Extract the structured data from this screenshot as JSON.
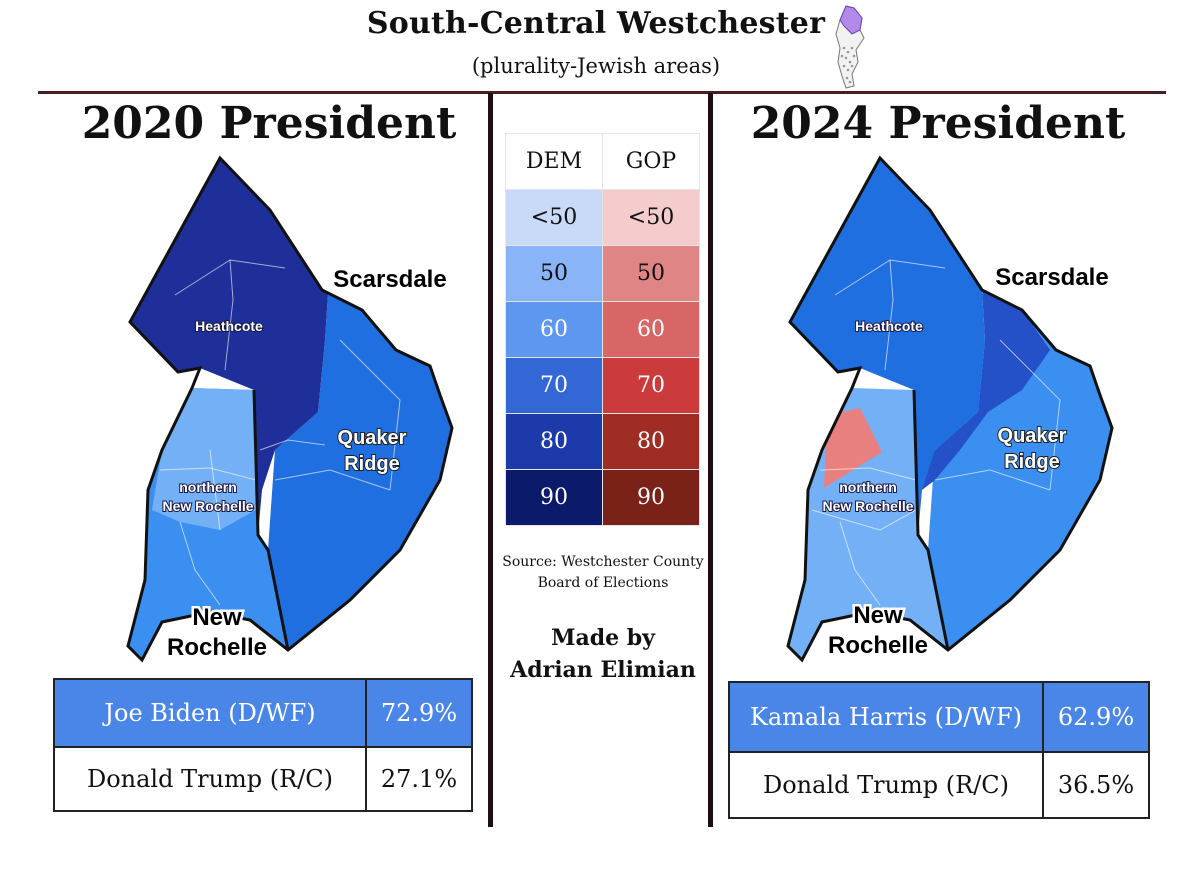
{
  "header": {
    "title": "South-Central Westchester",
    "subtitle": "(plurality-Jewish areas)"
  },
  "icons": {
    "county_locator": "westchester-county-locator-icon"
  },
  "left": {
    "panel_title": "2020 President",
    "labels": {
      "heathcote": "Heathcote",
      "scarsdale": "Scarsdale",
      "quaker_1": "Quaker",
      "quaker_2": "Ridge",
      "north_nr_1": "northern",
      "north_nr_2": "New Rochelle",
      "new_ro_1": "New",
      "new_ro_2": "Rochelle"
    },
    "results": [
      {
        "candidate": "Joe Biden (D/WF)",
        "pct": "72.9%"
      },
      {
        "candidate": "Donald Trump (R/C)",
        "pct": "27.1%"
      }
    ]
  },
  "right": {
    "panel_title": "2024 President",
    "labels": {
      "heathcote": "Heathcote",
      "scarsdale": "Scarsdale",
      "quaker_1": "Quaker",
      "quaker_2": "Ridge",
      "north_nr_1": "northern",
      "north_nr_2": "New Rochelle",
      "new_ro_1": "New",
      "new_ro_2": "Rochelle"
    },
    "results": [
      {
        "candidate": "Kamala Harris (D/WF)",
        "pct": "62.9%"
      },
      {
        "candidate": "Donald Trump (R/C)",
        "pct": "36.5%"
      }
    ]
  },
  "legend": {
    "headers": [
      "DEM",
      "GOP"
    ],
    "rows": [
      {
        "label": "<50",
        "dem_color": "#c9daf8",
        "gop_color": "#f4cccc"
      },
      {
        "label": "50",
        "dem_color": "#8ab4f8",
        "gop_color": "#e08585"
      },
      {
        "label": "60",
        "dem_color": "#5e97f0",
        "gop_color": "#d96666"
      },
      {
        "label": "70",
        "dem_color": "#3367d6",
        "gop_color": "#cc3b3b"
      },
      {
        "label": "80",
        "dem_color": "#1c3aa9",
        "gop_color": "#a02d24"
      },
      {
        "label": "90",
        "dem_color": "#0b1a6b",
        "gop_color": "#7a2218"
      }
    ]
  },
  "colors": {
    "d90": "#1f2f9a",
    "d80": "#2451c8",
    "d70": "#1f6fe0",
    "d60": "#3b8ff0",
    "d50": "#74b0f5",
    "r50": "#e88080",
    "winner_row": "#4a86e8"
  },
  "footer": {
    "source_1": "Source: Westchester County",
    "source_2": "Board of Elections",
    "credit_1": "Made by",
    "credit_2": "Adrian Elimian"
  }
}
